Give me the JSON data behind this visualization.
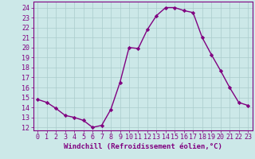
{
  "x": [
    0,
    1,
    2,
    3,
    4,
    5,
    6,
    7,
    8,
    9,
    10,
    11,
    12,
    13,
    14,
    15,
    16,
    17,
    18,
    19,
    20,
    21,
    22,
    23
  ],
  "y": [
    14.8,
    14.5,
    13.9,
    13.2,
    13.0,
    12.7,
    12.0,
    12.2,
    13.8,
    16.5,
    20.0,
    19.9,
    21.8,
    23.2,
    24.0,
    24.0,
    23.7,
    23.5,
    21.0,
    19.3,
    17.7,
    16.0,
    14.5,
    14.2
  ],
  "line_color": "#800080",
  "marker": "D",
  "marker_size": 2.2,
  "linewidth": 1.0,
  "bg_color": "#cce8e8",
  "grid_color": "#aacccc",
  "xlabel": "Windchill (Refroidissement éolien,°C)",
  "xlabel_fontsize": 6.5,
  "yticks": [
    12,
    13,
    14,
    15,
    16,
    17,
    18,
    19,
    20,
    21,
    22,
    23,
    24
  ],
  "xticks": [
    0,
    1,
    2,
    3,
    4,
    5,
    6,
    7,
    8,
    9,
    10,
    11,
    12,
    13,
    14,
    15,
    16,
    17,
    18,
    19,
    20,
    21,
    22,
    23
  ],
  "ylim": [
    11.7,
    24.6
  ],
  "xlim": [
    -0.5,
    23.5
  ],
  "tick_fontsize": 6.0,
  "spine_color": "#800080"
}
